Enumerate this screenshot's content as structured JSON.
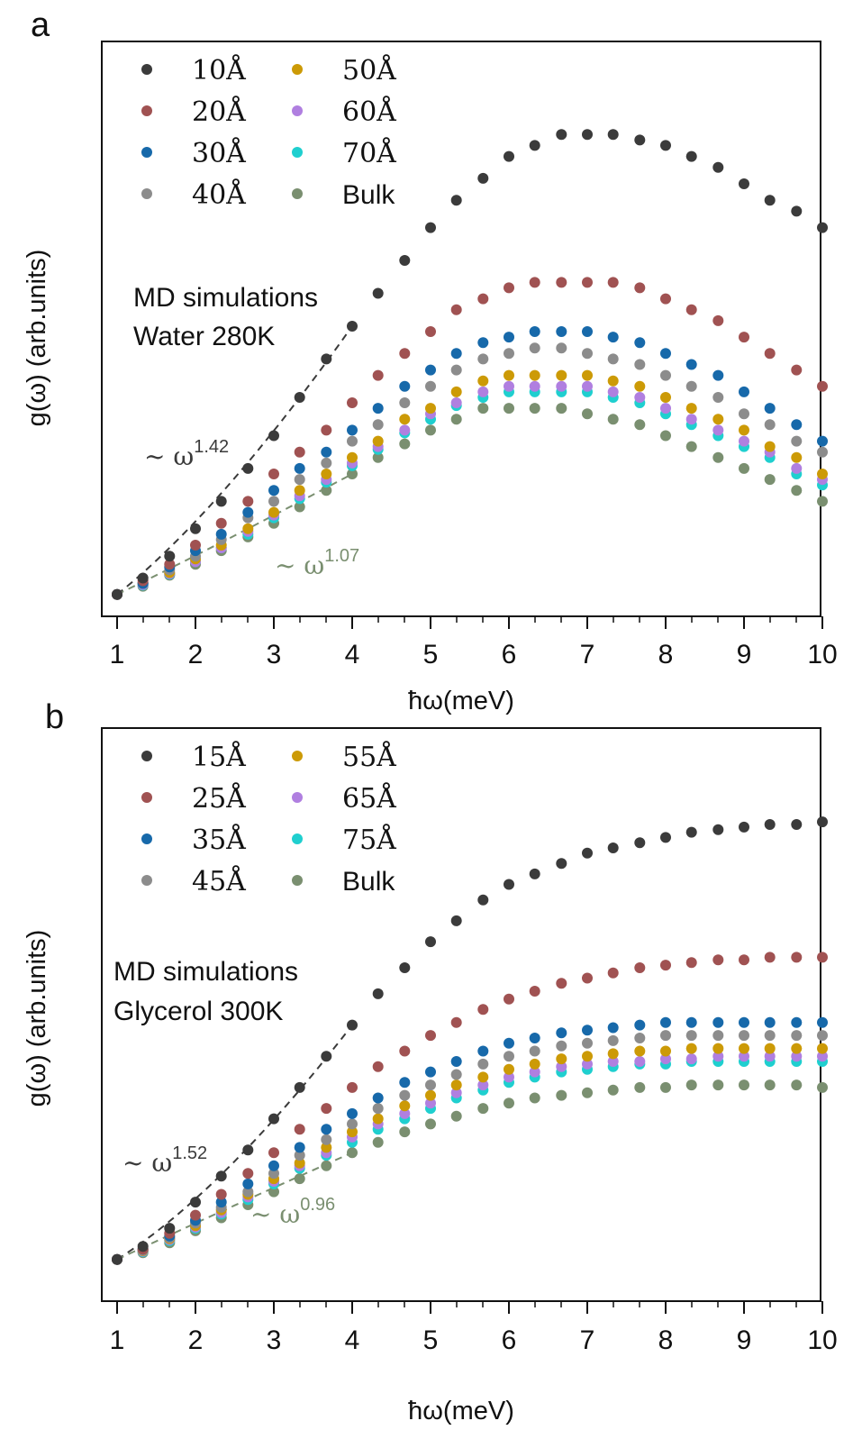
{
  "figure": {
    "panels": [
      {
        "letter": "a",
        "annotation_lines": [
          "MD simulations",
          "Water 280K"
        ],
        "legend": [
          "10Å",
          "20Å",
          "30Å",
          "40Å",
          "50Å",
          "60Å",
          "70Å",
          "Bulk"
        ],
        "fits": [
          {
            "text": "~ ω",
            "exponent": "1.42",
            "color": "#3a3a3a"
          },
          {
            "text": "~ ω",
            "exponent": "1.07",
            "color": "#7a8f70"
          }
        ]
      },
      {
        "letter": "b",
        "annotation_lines": [
          "MD simulations",
          "Glycerol 300K"
        ],
        "legend": [
          "15Å",
          "25Å",
          "35Å",
          "45Å",
          "55Å",
          "65Å",
          "75Å",
          "Bulk"
        ],
        "fits": [
          {
            "text": "~ ω",
            "exponent": "1.52",
            "color": "#3a3a3a"
          },
          {
            "text": "~ ω",
            "exponent": "0.96",
            "color": "#7a8f70"
          }
        ]
      }
    ],
    "colors": [
      "#3b3b3b",
      "#a05252",
      "#1769aa",
      "#8c8c8c",
      "#cc9a06",
      "#b07fe0",
      "#1fcfcf",
      "#7a8f70"
    ]
  },
  "chart_data": [
    {
      "type": "scatter",
      "title": "",
      "xlabel": "ħω(meV)",
      "ylabel": "g(ω) (arb.units)",
      "xlim": [
        0.8,
        10.0
      ],
      "ylim": [
        0,
        1.05
      ],
      "xticks": [
        1,
        2,
        3,
        4,
        5,
        6,
        7,
        8,
        9,
        10
      ],
      "yticks": [],
      "x": [
        1.0,
        1.33,
        1.67,
        2.0,
        2.33,
        2.67,
        3.0,
        3.33,
        3.67,
        4.0,
        4.33,
        4.67,
        5.0,
        5.33,
        5.67,
        6.0,
        6.33,
        6.67,
        7.0,
        7.33,
        7.67,
        8.0,
        8.33,
        8.67,
        9.0,
        9.33,
        9.67,
        10.0
      ],
      "series": [
        {
          "name": "10Å",
          "values": [
            0.04,
            0.07,
            0.11,
            0.16,
            0.21,
            0.27,
            0.33,
            0.4,
            0.47,
            0.53,
            0.59,
            0.65,
            0.71,
            0.76,
            0.8,
            0.84,
            0.86,
            0.88,
            0.88,
            0.88,
            0.87,
            0.86,
            0.84,
            0.82,
            0.79,
            0.76,
            0.74,
            0.71
          ]
        },
        {
          "name": "20Å",
          "values": [
            0.04,
            0.065,
            0.095,
            0.13,
            0.17,
            0.21,
            0.26,
            0.3,
            0.34,
            0.39,
            0.44,
            0.48,
            0.52,
            0.56,
            0.58,
            0.6,
            0.61,
            0.61,
            0.61,
            0.61,
            0.6,
            0.58,
            0.56,
            0.54,
            0.51,
            0.48,
            0.45,
            0.42
          ]
        },
        {
          "name": "30Å",
          "values": [
            0.04,
            0.06,
            0.09,
            0.12,
            0.15,
            0.19,
            0.23,
            0.27,
            0.3,
            0.34,
            0.38,
            0.42,
            0.45,
            0.48,
            0.5,
            0.51,
            0.52,
            0.52,
            0.52,
            0.51,
            0.5,
            0.48,
            0.46,
            0.44,
            0.41,
            0.38,
            0.35,
            0.32
          ]
        },
        {
          "name": "40Å",
          "values": [
            0.04,
            0.06,
            0.085,
            0.11,
            0.14,
            0.18,
            0.21,
            0.25,
            0.28,
            0.32,
            0.35,
            0.39,
            0.42,
            0.45,
            0.47,
            0.48,
            0.49,
            0.49,
            0.48,
            0.47,
            0.46,
            0.44,
            0.42,
            0.4,
            0.37,
            0.35,
            0.32,
            0.3
          ]
        },
        {
          "name": "50Å",
          "values": [
            0.04,
            0.06,
            0.08,
            0.105,
            0.13,
            0.16,
            0.19,
            0.23,
            0.26,
            0.29,
            0.32,
            0.36,
            0.38,
            0.41,
            0.43,
            0.44,
            0.44,
            0.44,
            0.44,
            0.43,
            0.42,
            0.4,
            0.38,
            0.36,
            0.34,
            0.31,
            0.29,
            0.26
          ]
        },
        {
          "name": "60Å",
          "values": [
            0.04,
            0.058,
            0.078,
            0.1,
            0.125,
            0.155,
            0.185,
            0.22,
            0.25,
            0.28,
            0.31,
            0.34,
            0.37,
            0.39,
            0.41,
            0.42,
            0.42,
            0.42,
            0.42,
            0.41,
            0.4,
            0.38,
            0.36,
            0.34,
            0.32,
            0.3,
            0.27,
            0.25
          ]
        },
        {
          "name": "70Å",
          "values": [
            0.04,
            0.057,
            0.077,
            0.1,
            0.125,
            0.15,
            0.18,
            0.215,
            0.245,
            0.275,
            0.305,
            0.335,
            0.36,
            0.385,
            0.4,
            0.41,
            0.41,
            0.41,
            0.41,
            0.4,
            0.39,
            0.37,
            0.35,
            0.33,
            0.31,
            0.29,
            0.26,
            0.24
          ]
        },
        {
          "name": "Bulk",
          "values": [
            0.04,
            0.055,
            0.075,
            0.095,
            0.12,
            0.145,
            0.17,
            0.2,
            0.23,
            0.26,
            0.29,
            0.315,
            0.34,
            0.36,
            0.38,
            0.38,
            0.38,
            0.38,
            0.37,
            0.36,
            0.35,
            0.33,
            0.31,
            0.29,
            0.27,
            0.25,
            0.23,
            0.21
          ]
        }
      ],
      "fits": [
        {
          "label": "~ ω^1.42",
          "exponent": 1.42,
          "x_range": [
            1.0,
            4.0
          ],
          "y_start": 0.04,
          "y_end": 0.53
        },
        {
          "label": "~ ω^1.07",
          "exponent": 1.07,
          "x_range": [
            1.0,
            4.0
          ],
          "y_start": 0.04,
          "y_end": 0.26
        }
      ],
      "grid": false,
      "legend_position": "top-left"
    },
    {
      "type": "scatter",
      "title": "",
      "xlabel": "ħω(meV)",
      "ylabel": "g(ω) (arb.units)",
      "xlim": [
        0.8,
        10.0
      ],
      "ylim": [
        0,
        1.1
      ],
      "xticks": [
        1,
        2,
        3,
        4,
        5,
        6,
        7,
        8,
        9,
        10
      ],
      "yticks": [],
      "x": [
        1.0,
        1.33,
        1.67,
        2.0,
        2.33,
        2.67,
        3.0,
        3.33,
        3.67,
        4.0,
        4.33,
        4.67,
        5.0,
        5.33,
        5.67,
        6.0,
        6.33,
        6.67,
        7.0,
        7.33,
        7.67,
        8.0,
        8.33,
        8.67,
        9.0,
        9.33,
        9.67,
        10.0
      ],
      "series": [
        {
          "name": "15Å",
          "values": [
            0.08,
            0.105,
            0.14,
            0.19,
            0.24,
            0.29,
            0.35,
            0.41,
            0.47,
            0.53,
            0.59,
            0.64,
            0.69,
            0.73,
            0.77,
            0.8,
            0.82,
            0.84,
            0.86,
            0.87,
            0.88,
            0.89,
            0.9,
            0.905,
            0.91,
            0.915,
            0.915,
            0.92
          ]
        },
        {
          "name": "25Å",
          "values": [
            0.08,
            0.1,
            0.13,
            0.165,
            0.205,
            0.245,
            0.285,
            0.33,
            0.37,
            0.41,
            0.45,
            0.48,
            0.51,
            0.535,
            0.56,
            0.58,
            0.595,
            0.61,
            0.62,
            0.63,
            0.64,
            0.645,
            0.65,
            0.655,
            0.655,
            0.66,
            0.66,
            0.66
          ]
        },
        {
          "name": "35Å",
          "values": [
            0.08,
            0.1,
            0.125,
            0.155,
            0.19,
            0.225,
            0.26,
            0.295,
            0.33,
            0.36,
            0.39,
            0.42,
            0.44,
            0.46,
            0.48,
            0.495,
            0.505,
            0.515,
            0.52,
            0.525,
            0.53,
            0.535,
            0.535,
            0.535,
            0.535,
            0.535,
            0.535,
            0.535
          ]
        },
        {
          "name": "45Å",
          "values": [
            0.08,
            0.098,
            0.122,
            0.15,
            0.18,
            0.21,
            0.245,
            0.28,
            0.31,
            0.34,
            0.37,
            0.395,
            0.415,
            0.435,
            0.455,
            0.47,
            0.48,
            0.49,
            0.495,
            0.5,
            0.505,
            0.51,
            0.51,
            0.51,
            0.51,
            0.51,
            0.51,
            0.51
          ]
        },
        {
          "name": "55Å",
          "values": [
            0.08,
            0.097,
            0.12,
            0.145,
            0.175,
            0.205,
            0.235,
            0.265,
            0.295,
            0.325,
            0.35,
            0.375,
            0.395,
            0.415,
            0.43,
            0.445,
            0.455,
            0.465,
            0.47,
            0.475,
            0.48,
            0.48,
            0.485,
            0.485,
            0.485,
            0.485,
            0.485,
            0.485
          ]
        },
        {
          "name": "65Å",
          "values": [
            0.08,
            0.096,
            0.118,
            0.142,
            0.17,
            0.2,
            0.23,
            0.26,
            0.285,
            0.315,
            0.34,
            0.36,
            0.38,
            0.4,
            0.415,
            0.43,
            0.44,
            0.45,
            0.455,
            0.46,
            0.46,
            0.465,
            0.465,
            0.47,
            0.47,
            0.47,
            0.47,
            0.47
          ]
        },
        {
          "name": "75Å",
          "values": [
            0.08,
            0.095,
            0.116,
            0.14,
            0.167,
            0.195,
            0.225,
            0.255,
            0.28,
            0.305,
            0.33,
            0.35,
            0.37,
            0.39,
            0.405,
            0.42,
            0.43,
            0.44,
            0.445,
            0.45,
            0.455,
            0.455,
            0.46,
            0.46,
            0.46,
            0.46,
            0.46,
            0.46
          ]
        },
        {
          "name": "Bulk",
          "values": [
            0.08,
            0.093,
            0.112,
            0.135,
            0.16,
            0.185,
            0.21,
            0.235,
            0.26,
            0.285,
            0.305,
            0.325,
            0.34,
            0.355,
            0.37,
            0.38,
            0.39,
            0.395,
            0.4,
            0.405,
            0.41,
            0.41,
            0.415,
            0.415,
            0.415,
            0.415,
            0.415,
            0.41
          ]
        }
      ],
      "fits": [
        {
          "label": "~ ω^1.52",
          "exponent": 1.52,
          "x_range": [
            1.0,
            4.0
          ],
          "y_start": 0.08,
          "y_end": 0.53
        },
        {
          "label": "~ ω^0.96",
          "exponent": 0.96,
          "x_range": [
            1.0,
            4.0
          ],
          "y_start": 0.08,
          "y_end": 0.285
        }
      ],
      "grid": false,
      "legend_position": "top-left"
    }
  ]
}
